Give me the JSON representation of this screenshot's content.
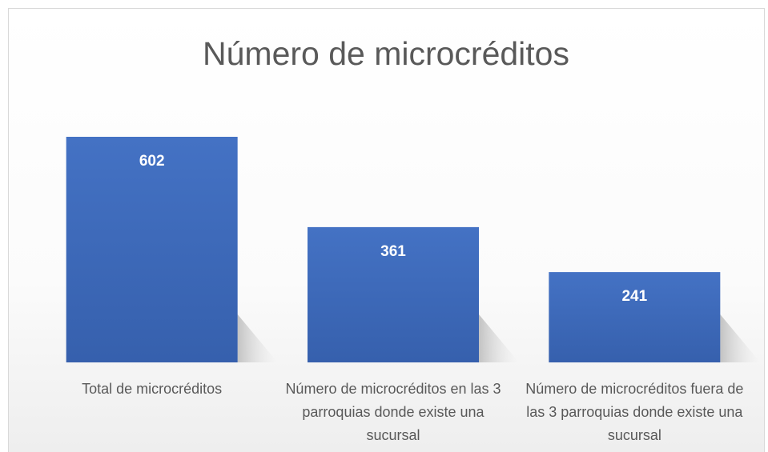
{
  "chart_data": {
    "type": "bar",
    "title": "Número de microcréditos",
    "categories": [
      "Total de microcréditos",
      "Número de microcréditos en las 3 parroquias donde existe una sucursal",
      "Número de microcréditos fuera de las 3 parroquias donde existe una sucursal"
    ],
    "values": [
      602,
      361,
      241
    ],
    "color": "#4472c4"
  }
}
